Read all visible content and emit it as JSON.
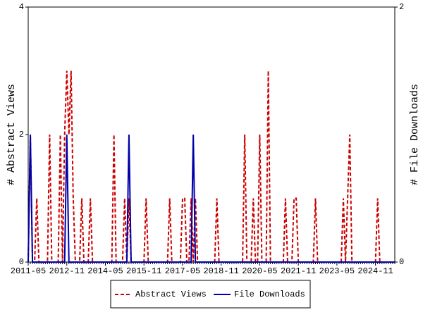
{
  "chart_data": {
    "type": "line",
    "ylabel": "# Abstract Views",
    "y2label": "# File Downloads",
    "categories": [
      "2011-05",
      null,
      null,
      null,
      null,
      null,
      null,
      null,
      null,
      null,
      null,
      null,
      null,
      null,
      null,
      null,
      null,
      null,
      "2012-11",
      null,
      null,
      null,
      null,
      null,
      null,
      null,
      null,
      null,
      null,
      null,
      null,
      null,
      null,
      null,
      null,
      null,
      "2014-05",
      null,
      null,
      null,
      null,
      null,
      null,
      null,
      null,
      null,
      null,
      null,
      null,
      null,
      null,
      null,
      null,
      null,
      "2015-11",
      null,
      null,
      null,
      null,
      null,
      null,
      null,
      null,
      null,
      null,
      null,
      null,
      null,
      null,
      null,
      null,
      null,
      "2017-05",
      null,
      null,
      null,
      null,
      null,
      null,
      null,
      null,
      null,
      null,
      null,
      null,
      null,
      null,
      null,
      null,
      null,
      "2018-11",
      null,
      null,
      null,
      null,
      null,
      null,
      null,
      null,
      null,
      null,
      null,
      null,
      null,
      null,
      null,
      null,
      null,
      "2020-05",
      null,
      null,
      null,
      null,
      null,
      null,
      null,
      null,
      null,
      null,
      null,
      null,
      null,
      null,
      null,
      null,
      null,
      "2021-11",
      null,
      null,
      null,
      null,
      null,
      null,
      null,
      null,
      null,
      null,
      null,
      null,
      null,
      null,
      null,
      null,
      null,
      "2023-05",
      null,
      null,
      null,
      null,
      null,
      null,
      null,
      null,
      null,
      null,
      null,
      null,
      null,
      null,
      null,
      null,
      null,
      "2024-11",
      null,
      null,
      null,
      null,
      null,
      null,
      null,
      null,
      null
    ],
    "series": [
      {
        "name": "Abstract Views",
        "color": "#cc0000",
        "dash": true,
        "values": [
          0,
          2,
          0,
          0,
          1,
          0,
          0,
          0,
          0,
          0,
          2,
          0,
          0,
          0,
          0,
          2,
          0,
          2,
          3,
          2,
          3,
          1,
          0,
          0,
          0,
          1,
          0,
          0,
          0,
          1,
          0,
          0,
          0,
          0,
          0,
          0,
          0,
          0,
          0,
          0,
          2,
          0,
          0,
          0,
          0,
          1,
          0,
          1,
          0,
          0,
          0,
          0,
          0,
          0,
          0,
          1,
          0,
          0,
          0,
          0,
          0,
          0,
          0,
          0,
          0,
          0,
          1,
          0,
          0,
          0,
          0,
          0,
          1,
          1,
          0,
          0,
          1,
          0,
          1,
          0,
          0,
          0,
          0,
          0,
          0,
          0,
          0,
          0,
          1,
          0,
          0,
          0,
          0,
          0,
          0,
          0,
          0,
          0,
          0,
          0,
          0,
          2,
          0,
          0,
          0,
          1,
          0,
          0,
          2,
          0,
          0,
          0,
          3,
          0,
          0,
          0,
          0,
          0,
          0,
          0,
          1,
          0,
          0,
          0,
          1,
          1,
          0,
          0,
          0,
          0,
          0,
          0,
          0,
          0,
          1,
          0,
          0,
          0,
          0,
          0,
          0,
          0,
          0,
          0,
          0,
          0,
          0,
          1,
          0,
          1,
          2,
          0,
          0,
          0,
          0,
          0,
          0,
          0,
          0,
          0,
          0,
          0,
          0,
          1,
          0,
          0,
          0,
          0,
          0,
          0,
          0,
          0
        ]
      },
      {
        "name": "File Downloads",
        "color": "#0000aa",
        "axis": "y2",
        "values": [
          0,
          1,
          0,
          0,
          0,
          0,
          0,
          0,
          0,
          0,
          0,
          0,
          0,
          0,
          0,
          0,
          0,
          0,
          1,
          0,
          0,
          0,
          0,
          0,
          0,
          0,
          0,
          0,
          0,
          0,
          0,
          0,
          0,
          0,
          0,
          0,
          0,
          0,
          0,
          0,
          0,
          0,
          0,
          0,
          0,
          0,
          0,
          1,
          0,
          0,
          0,
          0,
          0,
          0,
          0,
          0,
          0,
          0,
          0,
          0,
          0,
          0,
          0,
          0,
          0,
          0,
          0,
          0,
          0,
          0,
          0,
          0,
          0,
          0,
          0,
          0,
          0,
          1,
          0,
          0,
          0,
          0,
          0,
          0,
          0,
          0,
          0,
          0,
          0,
          0,
          0,
          0,
          0,
          0,
          0,
          0,
          0,
          0,
          0,
          0,
          0,
          0,
          0,
          0,
          0,
          0,
          0,
          0,
          0,
          0,
          0,
          0,
          0,
          0,
          0,
          0,
          0,
          0,
          0,
          0,
          0,
          0,
          0,
          0,
          0,
          0,
          0,
          0,
          0,
          0,
          0,
          0,
          0,
          0,
          0,
          0,
          0,
          0,
          0,
          0,
          0,
          0,
          0,
          0,
          0,
          0,
          0,
          0,
          0,
          0,
          0,
          0,
          0,
          0,
          0,
          0,
          0,
          0,
          0,
          0,
          0,
          0,
          0,
          0,
          0,
          0,
          0,
          0,
          0,
          0,
          0,
          0
        ]
      }
    ],
    "ylim": [
      0,
      4
    ],
    "yticks": [
      0,
      2,
      4
    ],
    "y2lim": [
      0,
      2
    ],
    "y2ticks": [
      0,
      2
    ],
    "legend": "bottom"
  }
}
